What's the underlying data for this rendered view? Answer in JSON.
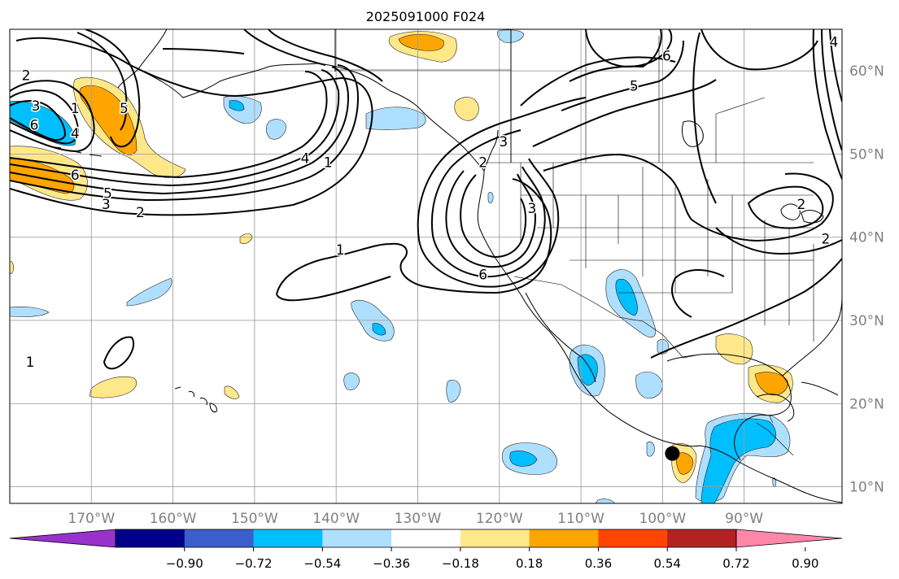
{
  "title": "2025091000 F024",
  "colors": {
    "ocean": "#ffffff",
    "contour": "#000000",
    "border": "#000000",
    "grid": "#a0a0a0",
    "axis_text": "#808080",
    "marker": "#000000"
  },
  "map": {
    "lon_range": [
      -180,
      -78
    ],
    "lat_range": [
      8,
      65
    ],
    "lon_ticks": [
      {
        "value": -170,
        "label": "170°W"
      },
      {
        "value": -160,
        "label": "160°W"
      },
      {
        "value": -150,
        "label": "150°W"
      },
      {
        "value": -140,
        "label": "140°W"
      },
      {
        "value": -130,
        "label": "130°W"
      },
      {
        "value": -120,
        "label": "120°W"
      },
      {
        "value": -110,
        "label": "110°W"
      },
      {
        "value": -100,
        "label": "100°W"
      },
      {
        "value": -90,
        "label": "90°W"
      }
    ],
    "lat_ticks": [
      {
        "value": 60,
        "label": "60°N"
      },
      {
        "value": 50,
        "label": "50°N"
      },
      {
        "value": 40,
        "label": "40°N"
      },
      {
        "value": 30,
        "label": "30°N"
      },
      {
        "value": 20,
        "label": "20°N"
      },
      {
        "value": 10,
        "label": "10°N"
      }
    ],
    "contour_labels": [
      {
        "text": "2",
        "lon": -178.0,
        "lat": 59.5
      },
      {
        "text": "3",
        "lon": -176.8,
        "lat": 55.8
      },
      {
        "text": "1",
        "lon": -172.0,
        "lat": 55.5
      },
      {
        "text": "5",
        "lon": -166.0,
        "lat": 55.5
      },
      {
        "text": "6",
        "lon": -177.0,
        "lat": 53.5
      },
      {
        "text": "4",
        "lon": -172.0,
        "lat": 52.5
      },
      {
        "text": "6",
        "lon": -172.0,
        "lat": 47.5
      },
      {
        "text": "5",
        "lon": -168.0,
        "lat": 45.3
      },
      {
        "text": "3",
        "lon": -168.2,
        "lat": 44.0
      },
      {
        "text": "2",
        "lon": -164.0,
        "lat": 43.0
      },
      {
        "text": "4",
        "lon": -143.8,
        "lat": 49.5
      },
      {
        "text": "1",
        "lon": -141.0,
        "lat": 49.0
      },
      {
        "text": "1",
        "lon": -139.5,
        "lat": 38.5
      },
      {
        "text": "3",
        "lon": -119.5,
        "lat": 51.5
      },
      {
        "text": "2",
        "lon": -122.0,
        "lat": 49.0
      },
      {
        "text": "3",
        "lon": -116.0,
        "lat": 43.5
      },
      {
        "text": "6",
        "lon": -122.0,
        "lat": 35.5
      },
      {
        "text": "5",
        "lon": -103.5,
        "lat": 58.2
      },
      {
        "text": "6",
        "lon": -99.5,
        "lat": 61.8
      },
      {
        "text": "2",
        "lon": -83.0,
        "lat": 44.0
      },
      {
        "text": "2",
        "lon": -80.0,
        "lat": 39.8
      },
      {
        "text": "1",
        "lon": -177.5,
        "lat": 25.0
      },
      {
        "text": "4",
        "lon": -79.0,
        "lat": 63.5
      }
    ],
    "marker": {
      "lon": -98.8,
      "lat": 14.0
    }
  },
  "colorbar": {
    "ticks": [
      "−0.90",
      "−0.72",
      "−0.54",
      "−0.36",
      "−0.18",
      "0.18",
      "0.36",
      "0.54",
      "0.72",
      "0.90"
    ],
    "colors": [
      "#9932cc",
      "#00008b",
      "#3a5fcd",
      "#00bfff",
      "#afdfff",
      "#ffffff",
      "#ffe88a",
      "#ffa500",
      "#ff4500",
      "#b22222",
      "#ff88aa"
    ]
  }
}
